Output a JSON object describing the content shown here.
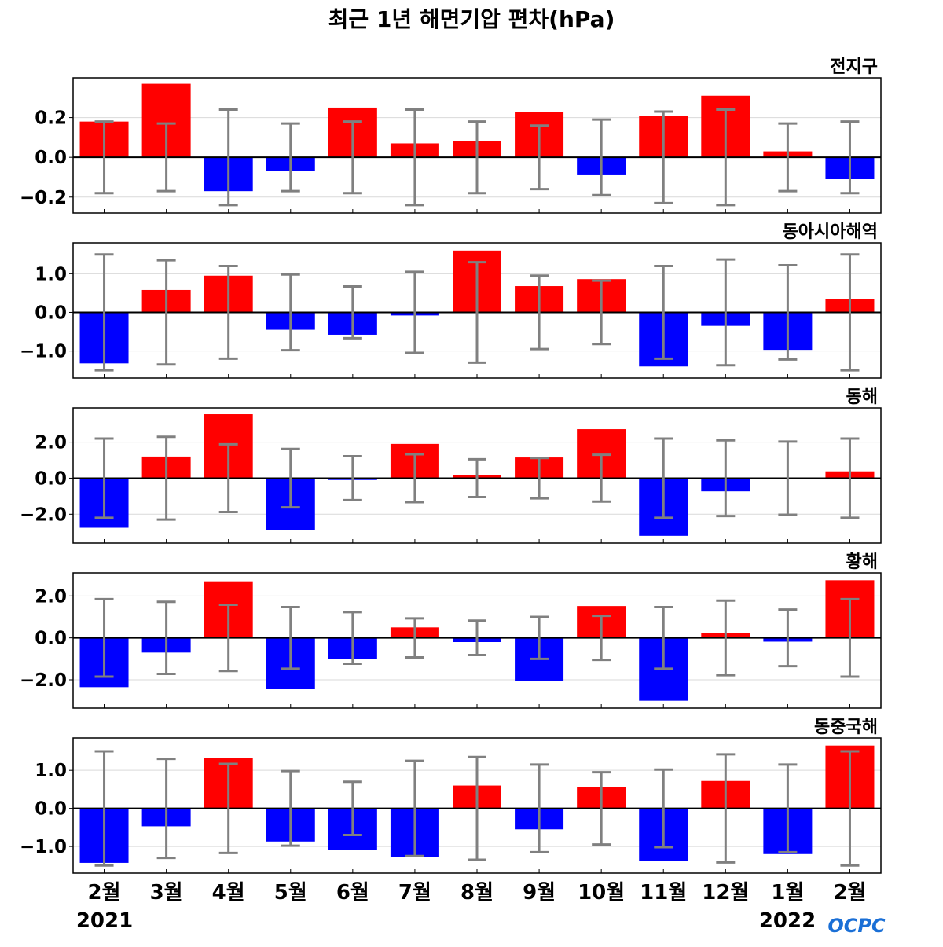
{
  "title": "최근 1년 해면기압 편차(hPa)",
  "colors": {
    "positive": "#ff0000",
    "negative": "#0000ff",
    "error_bar": "#808080",
    "zero_line": "#000000",
    "grid": "#d9d9d9"
  },
  "x_tick_labels": [
    "2월",
    "3월",
    "4월",
    "5월",
    "6월",
    "7월",
    "8월",
    "9월",
    "10월",
    "11월",
    "12월",
    "1월",
    "2월"
  ],
  "year_labels": {
    "start": "2021",
    "end": "2022"
  },
  "logo": {
    "text": "OCPC",
    "color": "#1a6fd6"
  },
  "chart_data": [
    {
      "type": "bar",
      "title": "전지구",
      "categories": [
        "2월",
        "3월",
        "4월",
        "5월",
        "6월",
        "7월",
        "8월",
        "9월",
        "10월",
        "11월",
        "12월",
        "1월",
        "2월"
      ],
      "values": [
        0.18,
        0.37,
        -0.17,
        -0.07,
        0.25,
        0.07,
        0.08,
        0.23,
        -0.09,
        0.21,
        0.31,
        0.03,
        -0.11
      ],
      "error": [
        0.18,
        0.17,
        0.24,
        0.17,
        0.18,
        0.24,
        0.18,
        0.16,
        0.19,
        0.23,
        0.24,
        0.17,
        0.18
      ],
      "ylim": [
        -0.28,
        0.4
      ],
      "yticks": [
        0.2,
        0.0,
        -0.2
      ],
      "ytick_labels": [
        "0.2",
        "0.0",
        "−0.2"
      ],
      "grid": true
    },
    {
      "type": "bar",
      "title": "동아시아해역",
      "categories": [
        "2월",
        "3월",
        "4월",
        "5월",
        "6월",
        "7월",
        "8월",
        "9월",
        "10월",
        "11월",
        "12월",
        "1월",
        "2월"
      ],
      "values": [
        -1.32,
        0.58,
        0.95,
        -0.45,
        -0.58,
        -0.08,
        1.6,
        0.68,
        0.86,
        -1.4,
        -0.35,
        -0.97,
        0.35
      ],
      "error": [
        1.5,
        1.35,
        1.2,
        0.98,
        0.67,
        1.05,
        1.3,
        0.95,
        0.82,
        1.2,
        1.37,
        1.22,
        1.5
      ],
      "ylim": [
        -1.7,
        1.8
      ],
      "yticks": [
        1.0,
        0.0,
        -1.0
      ],
      "ytick_labels": [
        "1.0",
        "0.0",
        "−1.0"
      ],
      "grid": true
    },
    {
      "type": "bar",
      "title": "동해",
      "categories": [
        "2월",
        "3월",
        "4월",
        "5월",
        "6월",
        "7월",
        "8월",
        "9월",
        "10월",
        "11월",
        "12월",
        "1월",
        "2월"
      ],
      "values": [
        -2.75,
        1.2,
        3.55,
        -2.9,
        -0.1,
        1.9,
        0.15,
        1.15,
        2.72,
        -3.2,
        -0.73,
        -0.05,
        0.38
      ],
      "error": [
        2.2,
        2.3,
        1.88,
        1.62,
        1.22,
        1.33,
        1.05,
        1.12,
        1.3,
        2.2,
        2.1,
        2.03,
        2.2
      ],
      "ylim": [
        -3.6,
        3.9
      ],
      "yticks": [
        2.0,
        0.0,
        -2.0
      ],
      "ytick_labels": [
        "2.0",
        "0.0",
        "−2.0"
      ],
      "grid": true
    },
    {
      "type": "bar",
      "title": "황해",
      "categories": [
        "2월",
        "3월",
        "4월",
        "5월",
        "6월",
        "7월",
        "8월",
        "9월",
        "10월",
        "11월",
        "12월",
        "1월",
        "2월"
      ],
      "values": [
        -2.35,
        -0.7,
        2.7,
        -2.45,
        -1.0,
        0.5,
        -0.2,
        -2.05,
        1.52,
        -3.0,
        0.25,
        -0.18,
        2.75
      ],
      "error": [
        1.85,
        1.72,
        1.58,
        1.47,
        1.23,
        0.93,
        0.82,
        1.0,
        1.05,
        1.47,
        1.78,
        1.35,
        1.85
      ],
      "ylim": [
        -3.35,
        3.1
      ],
      "yticks": [
        2.0,
        0.0,
        -2.0
      ],
      "ytick_labels": [
        "2.0",
        "0.0",
        "−2.0"
      ],
      "grid": true
    },
    {
      "type": "bar",
      "title": "동중국해",
      "categories": [
        "2월",
        "3월",
        "4월",
        "5월",
        "6월",
        "7월",
        "8월",
        "9월",
        "10월",
        "11월",
        "12월",
        "1월",
        "2월"
      ],
      "values": [
        -1.43,
        -0.47,
        1.32,
        -0.87,
        -1.1,
        -1.27,
        0.6,
        -0.55,
        0.57,
        -1.37,
        0.72,
        -1.2,
        1.65
      ],
      "error": [
        1.5,
        1.3,
        1.17,
        0.98,
        0.7,
        1.25,
        1.35,
        1.15,
        0.95,
        1.02,
        1.42,
        1.15,
        1.5
      ],
      "ylim": [
        -1.7,
        1.85
      ],
      "yticks": [
        1.0,
        0.0,
        -1.0
      ],
      "ytick_labels": [
        "1.0",
        "0.0",
        "−1.0"
      ],
      "grid": true
    }
  ]
}
